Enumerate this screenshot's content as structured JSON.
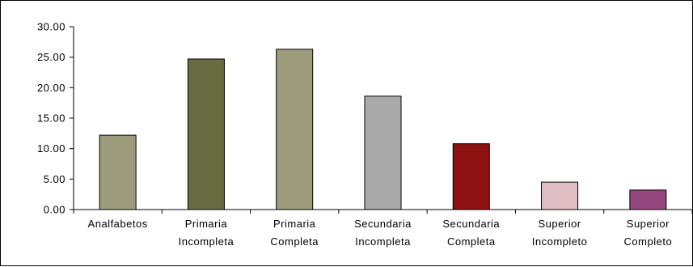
{
  "chart_data": {
    "type": "bar",
    "title": "",
    "xlabel": "",
    "ylabel": "",
    "ylim": [
      0,
      30
    ],
    "yticks": [
      "0.00",
      "5.00",
      "10.00",
      "15.00",
      "20.00",
      "25.00",
      "30.00"
    ],
    "categories": [
      [
        "Analfabetos"
      ],
      [
        "Primaria",
        "Incompleta"
      ],
      [
        "Primaria",
        "Completa"
      ],
      [
        "Secundaria",
        "Incompleta"
      ],
      [
        "Secundaria",
        "Completa"
      ],
      [
        "Superior",
        "Incompleto"
      ],
      [
        "Superior",
        "Completo"
      ]
    ],
    "values": [
      12.2,
      24.7,
      26.3,
      18.6,
      10.8,
      4.5,
      3.2
    ],
    "bar_colors": [
      "#9c9c7c",
      "#686a40",
      "#9c9c7c",
      "#aaaaaa",
      "#8d1111",
      "#e2bfc4",
      "#94477f"
    ],
    "grid": false,
    "legend": "none"
  }
}
